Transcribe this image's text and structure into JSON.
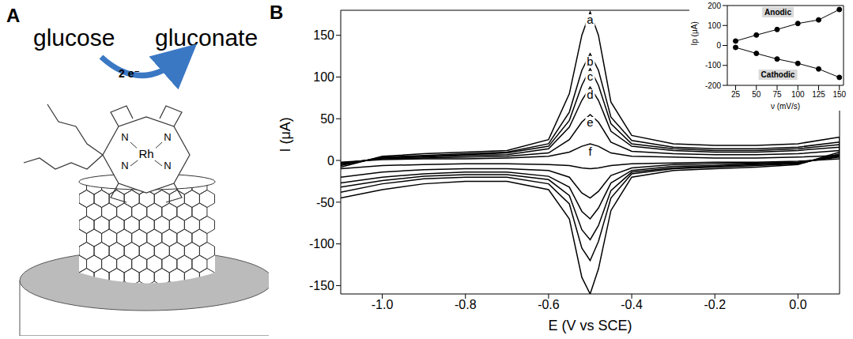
{
  "diagram": {
    "letter": "A",
    "reactant": "glucose",
    "product": "gluconate",
    "electrons": "2 e⁻",
    "metal": "Rh",
    "ligand_atoms": [
      "N",
      "N",
      "N",
      "N"
    ]
  },
  "chart_data": [
    {
      "letter": "B",
      "type": "line",
      "x_label": "E (V vs SCE)",
      "y_label": "I (μA)",
      "x": [
        -1.1,
        -1.0,
        -0.9,
        -0.8,
        -0.7,
        -0.6,
        -0.55,
        -0.52,
        -0.5,
        -0.48,
        -0.45,
        -0.4,
        -0.3,
        -0.2,
        -0.1,
        0.0,
        0.1,
        0.1,
        0.0,
        -0.1,
        -0.2,
        -0.3,
        -0.4,
        -0.45,
        -0.48,
        -0.5,
        -0.52,
        -0.55,
        -0.6,
        -0.7,
        -0.8,
        -0.9,
        -1.0,
        -1.1
      ],
      "series": [
        {
          "name": "a",
          "color": "#000000",
          "values": [
            -8,
            5,
            8,
            10,
            12,
            25,
            80,
            150,
            178,
            150,
            70,
            30,
            20,
            18,
            18,
            20,
            28,
            10,
            -5,
            -8,
            -10,
            -12,
            -20,
            -60,
            -130,
            -160,
            -140,
            -70,
            -35,
            -25,
            -25,
            -28,
            -35,
            -45
          ]
        },
        {
          "name": "b",
          "color": "#000000",
          "values": [
            -6,
            4,
            6,
            8,
            10,
            20,
            58,
            108,
            128,
            108,
            52,
            24,
            16,
            14,
            14,
            16,
            22,
            8,
            -4,
            -6,
            -8,
            -10,
            -16,
            -45,
            -97,
            -120,
            -105,
            -52,
            -28,
            -20,
            -20,
            -22,
            -28,
            -38
          ]
        },
        {
          "name": "c",
          "color": "#000000",
          "values": [
            -5,
            3,
            5,
            7,
            9,
            17,
            48,
            90,
            110,
            90,
            44,
            20,
            14,
            12,
            12,
            14,
            19,
            6,
            -3,
            -5,
            -7,
            -9,
            -14,
            -36,
            -78,
            -95,
            -83,
            -42,
            -23,
            -17,
            -17,
            -19,
            -24,
            -32
          ]
        },
        {
          "name": "d",
          "color": "#000000",
          "values": [
            -4,
            3,
            4,
            6,
            7,
            14,
            40,
            72,
            88,
            72,
            35,
            17,
            12,
            10,
            10,
            12,
            16,
            5,
            -3,
            -4,
            -6,
            -7,
            -12,
            -27,
            -57,
            -70,
            -61,
            -32,
            -19,
            -14,
            -14,
            -16,
            -20,
            -27
          ]
        },
        {
          "name": "e",
          "color": "#000000",
          "values": [
            -3,
            2,
            3,
            4,
            5,
            9,
            25,
            46,
            55,
            46,
            22,
            11,
            8,
            7,
            7,
            8,
            12,
            4,
            -2,
            -3,
            -4,
            -5,
            -9,
            -18,
            -37,
            -45,
            -39,
            -20,
            -12,
            -10,
            -10,
            -11,
            -14,
            -20
          ]
        },
        {
          "name": "f",
          "color": "#000000",
          "values": [
            -2,
            1,
            2,
            2,
            3,
            5,
            10,
            17,
            20,
            17,
            9,
            5,
            4,
            3,
            3,
            4,
            6,
            2,
            -1,
            -2,
            -2,
            -3,
            -4,
            -6,
            -9,
            -10,
            -9,
            -6,
            -5,
            -4,
            -4,
            -5,
            -6,
            -10
          ]
        }
      ],
      "xlim": [
        -1.1,
        0.1
      ],
      "xticks": [
        {
          "value": -1,
          "label": "-1.0"
        },
        {
          "value": -0.8,
          "label": "-0.8"
        },
        {
          "value": -0.6,
          "label": "-0.6"
        },
        {
          "value": -0.4,
          "label": "-0.4"
        },
        {
          "value": -0.2,
          "label": "-0.2"
        },
        {
          "value": 0,
          "label": "0.0"
        }
      ],
      "ylim": [
        -160,
        180
      ],
      "yticks": [
        -150,
        -100,
        -50,
        0,
        50,
        100,
        150
      ],
      "grid": false
    },
    {
      "type": "line",
      "x_label": "ν (mV/s)",
      "y_label": "Ip (μA)",
      "x": [
        25,
        50,
        75,
        100,
        125,
        150
      ],
      "series": [
        {
          "name": "Anodic",
          "color": "#000000",
          "marker": "circle",
          "values": [
            22,
            52,
            80,
            110,
            128,
            180
          ]
        },
        {
          "name": "Cathodic",
          "color": "#000000",
          "marker": "circle",
          "values": [
            -10,
            -40,
            -68,
            -90,
            -118,
            -160
          ]
        }
      ],
      "xlim": [
        15,
        155
      ],
      "xticks": [
        25,
        50,
        75,
        100,
        125,
        150
      ],
      "ylim": [
        -200,
        200
      ],
      "yticks": [
        -200,
        -100,
        0,
        100,
        200
      ],
      "grid": false
    }
  ]
}
